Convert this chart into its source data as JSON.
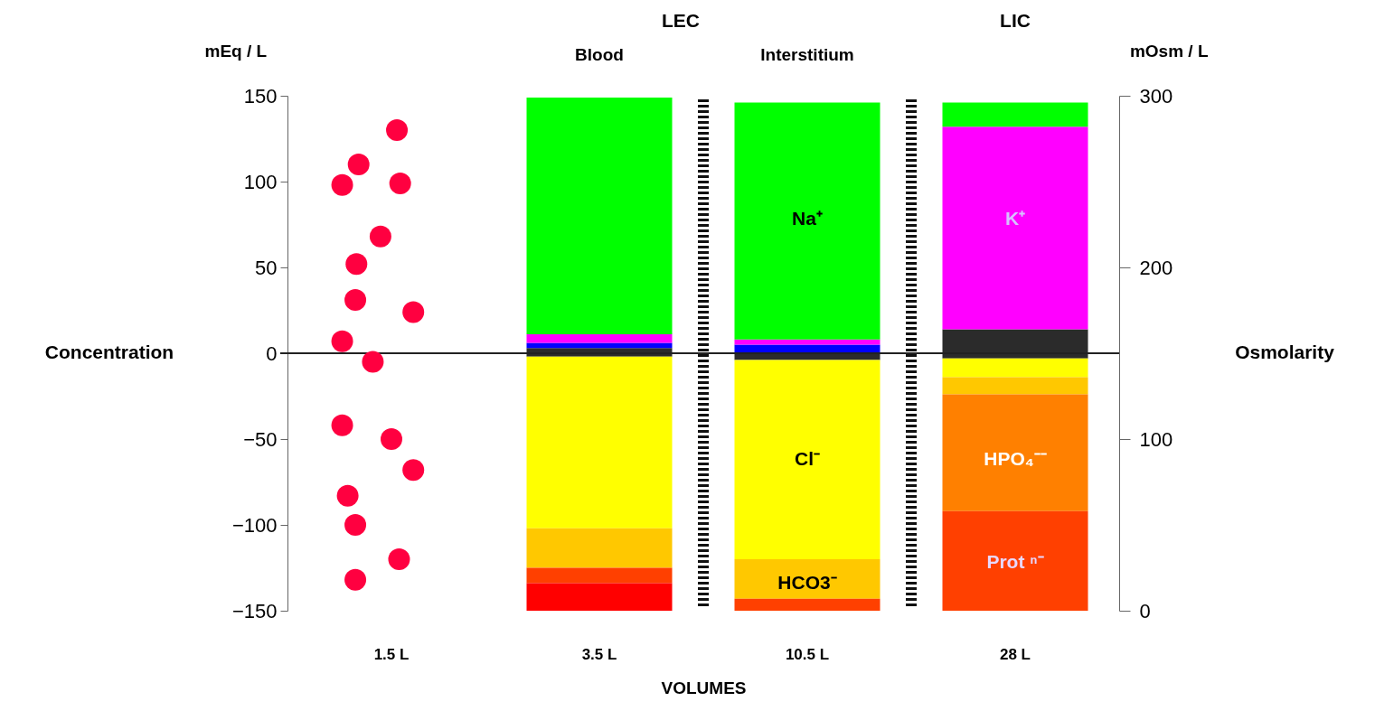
{
  "chart_data": {
    "type": "bar",
    "stacked": true,
    "categories": [
      "1.5 L",
      "3.5 L",
      "10.5 L",
      "28 L"
    ],
    "xlabel": "VOLUMES",
    "ylabel": "mEq / L",
    "y2label": "mOsm / L",
    "ylim": [
      -150,
      150
    ],
    "yticks": [
      -150,
      -100,
      -50,
      0,
      50,
      100,
      150
    ],
    "y2lim": [
      0,
      300
    ],
    "y2ticks": [
      0,
      100,
      200,
      300
    ],
    "grid": false,
    "ref_lines": [
      {
        "axis": "y",
        "value": 0,
        "color": "#222222"
      }
    ],
    "series": [
      {
        "color": "#2b2b2b",
        "values": [
          null,
          3,
          null,
          14
        ]
      },
      {
        "color": "#0000ff",
        "values": [
          null,
          3,
          5,
          null
        ]
      },
      {
        "color": "#ff00ff",
        "values": [
          null,
          5,
          3,
          118
        ]
      },
      {
        "color": "#00ff00",
        "values": [
          null,
          138,
          138,
          14
        ]
      },
      {
        "color": "#2b2b2b",
        "values": [
          null,
          -2,
          -4,
          -3
        ]
      },
      {
        "color": "#ffff00",
        "values": [
          null,
          -100,
          -116,
          -11
        ]
      },
      {
        "color": "#ffc800",
        "values": [
          null,
          -23,
          -23,
          -10
        ]
      },
      {
        "color": "#ff8000",
        "values": [
          null,
          null,
          null,
          -68
        ]
      },
      {
        "color": "#ff4000",
        "values": [
          null,
          -9,
          -7,
          -58
        ]
      },
      {
        "color": "#ff0000",
        "values": [
          null,
          -16,
          null,
          null
        ]
      }
    ],
    "annotations": [
      "Na⁺",
      "Cl⁻",
      "HCO3⁻",
      "K⁺",
      "HPO₄⁻⁻",
      "Prot ⁿ⁻",
      "LEC",
      "Blood",
      "Interstitium",
      "LIC",
      "Concentration",
      "Osmolarity"
    ]
  }
}
